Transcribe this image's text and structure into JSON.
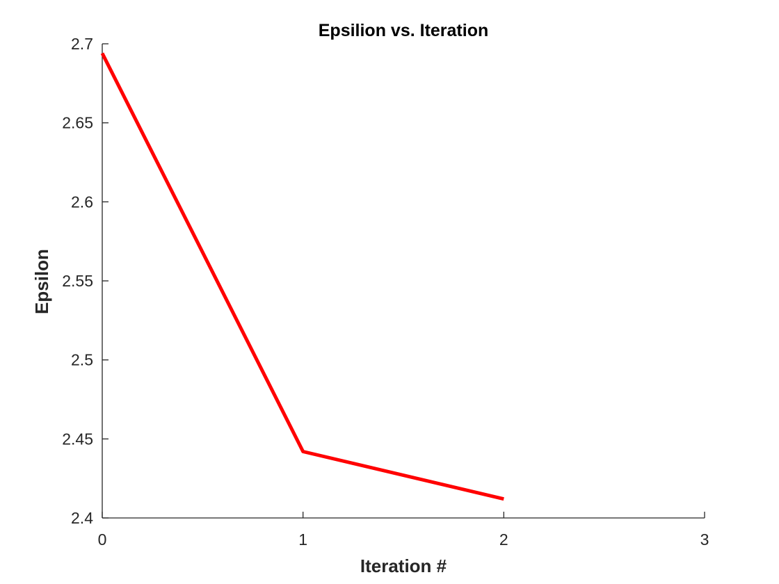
{
  "chart_data": {
    "type": "line",
    "title": "Epsilion vs. Iteration",
    "xlabel": "Iteration #",
    "ylabel": "Epsilon",
    "xlim": [
      0,
      3
    ],
    "ylim": [
      2.4,
      2.7
    ],
    "x_ticks": [
      0,
      1,
      2,
      3
    ],
    "y_ticks": [
      2.4,
      2.45,
      2.5,
      2.55,
      2.6,
      2.65,
      2.7
    ],
    "x_tick_labels": [
      "0",
      "1",
      "2",
      "3"
    ],
    "y_tick_labels": [
      "2.4",
      "2.45",
      "2.5",
      "2.55",
      "2.6",
      "2.65",
      "2.7"
    ],
    "grid": false,
    "series": [
      {
        "color": "#ff0000",
        "x": [
          0,
          1,
          2
        ],
        "y": [
          2.694,
          2.442,
          2.412
        ]
      }
    ]
  }
}
